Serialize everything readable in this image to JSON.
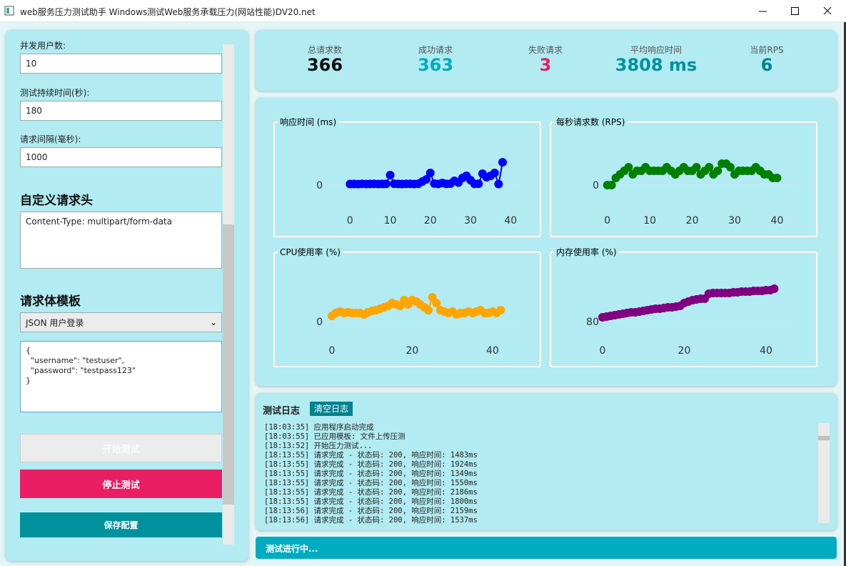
{
  "window": {
    "title": "web服务压力测试助手 Windows测试Web服务承载压力(网站性能)DV20.net"
  },
  "form": {
    "fields": [
      {
        "label": "并发用户数:",
        "value": "10"
      },
      {
        "label": "测试持续时间(秒):",
        "value": "180"
      },
      {
        "label": "请求间隔(毫秒):",
        "value": "1000"
      }
    ],
    "headers_title": "自定义请求头",
    "headers_value": "Content-Type: multipart/form-data",
    "body_title": "请求体模板",
    "template": "JSON 用户登录",
    "body_value": "{\n  \"username\": \"testuser\",\n  \"password\": \"testpass123\"\n}",
    "buttons": [
      "开始测试",
      "停止测试",
      "保存配置"
    ]
  },
  "stats": [
    {
      "label": "总请求数",
      "value": "366"
    },
    {
      "label": "成功请求",
      "value": "363"
    },
    {
      "label": "失败请求",
      "value": "3"
    },
    {
      "label": "平均响应时间",
      "value": "3808 ms"
    },
    {
      "label": "当前RPS",
      "value": "6"
    }
  ],
  "chart_data": [
    {
      "type": "line",
      "title": "响应时间 (ms)",
      "color": "#0000ff",
      "xlim": [
        -10,
        46
      ],
      "ylim": [
        -32000,
        73000
      ],
      "xticks": [
        0,
        10,
        20,
        30,
        40
      ],
      "yticks": [
        0
      ],
      "x": [
        0,
        1,
        2,
        3,
        4,
        5,
        6,
        7,
        8,
        9,
        10,
        11,
        12,
        13,
        14,
        15,
        16,
        17,
        18,
        19,
        20,
        21,
        22,
        23,
        24,
        25,
        26,
        27,
        28,
        29,
        30,
        31,
        32,
        33,
        34,
        35,
        36,
        37,
        38
      ],
      "values": [
        1500,
        1600,
        1400,
        1700,
        1500,
        1600,
        1800,
        1500,
        1600,
        1700,
        14000,
        1900,
        1600,
        1500,
        1800,
        1700,
        1500,
        1900,
        5000,
        8000,
        17000,
        2100,
        1600,
        3000,
        1800,
        2000,
        6000,
        3500,
        10000,
        13000,
        7000,
        1700,
        1900,
        16000,
        11000,
        13000,
        17000,
        1500,
        32000
      ]
    },
    {
      "type": "line",
      "title": "每秒请求数 (RPS)",
      "color": "#008000",
      "xlim": [
        -5,
        48
      ],
      "ylim": [
        -6.4,
        14.6
      ],
      "xticks": [
        0,
        10,
        20,
        30,
        40
      ],
      "yticks": [
        0
      ],
      "x": [
        0,
        1,
        2,
        3,
        4,
        5,
        6,
        7,
        8,
        9,
        10,
        11,
        12,
        13,
        14,
        15,
        16,
        17,
        18,
        19,
        20,
        21,
        22,
        23,
        24,
        25,
        26,
        27,
        28,
        29,
        30,
        31,
        32,
        33,
        34,
        35,
        36,
        37,
        38,
        39,
        40
      ],
      "values": [
        0,
        0,
        2,
        3,
        4,
        5,
        3,
        4,
        4,
        5,
        4,
        4,
        4,
        4,
        5,
        4,
        3,
        4,
        5,
        4,
        4,
        5,
        3,
        4,
        5,
        3,
        4,
        6,
        6,
        5,
        3,
        4,
        4,
        4,
        4,
        5,
        4,
        3,
        3,
        2,
        2
      ]
    },
    {
      "type": "line",
      "title": "CPU使用率 (%)",
      "color": "#ffa500",
      "xlim": [
        -5.5,
        50.5
      ],
      "ylim": [
        -23,
        82
      ],
      "xticks": [
        0,
        20,
        40
      ],
      "yticks": [
        0
      ],
      "x": [
        0,
        1,
        2,
        3,
        4,
        5,
        6,
        7,
        8,
        9,
        10,
        11,
        12,
        13,
        14,
        15,
        16,
        17,
        18,
        19,
        20,
        21,
        22,
        23,
        24,
        25,
        26,
        27,
        28,
        29,
        30,
        31,
        32,
        33,
        34,
        35,
        36,
        37,
        38,
        39,
        40,
        41,
        42
      ],
      "values": [
        8,
        12,
        14,
        12,
        13,
        12,
        12,
        12,
        10,
        13,
        15,
        16,
        18,
        20,
        22,
        26,
        24,
        22,
        30,
        24,
        30,
        28,
        24,
        20,
        16,
        34,
        26,
        16,
        14,
        12,
        14,
        10,
        12,
        12,
        14,
        12,
        14,
        16,
        12,
        12,
        14,
        12,
        16
      ]
    },
    {
      "type": "line",
      "title": "内存使用率 (%)",
      "color": "#800080",
      "xlim": [
        -4,
        51
      ],
      "ylim": [
        77.7,
        88.2
      ],
      "xticks": [
        0,
        20,
        40
      ],
      "yticks": [
        80
      ],
      "x": [
        0,
        1,
        2,
        3,
        4,
        5,
        6,
        7,
        8,
        9,
        10,
        11,
        12,
        13,
        14,
        15,
        16,
        17,
        18,
        19,
        20,
        21,
        22,
        23,
        24,
        25,
        26,
        27,
        28,
        29,
        30,
        31,
        32,
        33,
        34,
        35,
        36,
        37,
        38,
        39,
        40,
        41,
        42
      ],
      "values": [
        80.6,
        80.7,
        80.8,
        80.9,
        81.0,
        81.1,
        81.2,
        81.3,
        81.3,
        81.4,
        81.5,
        81.6,
        81.7,
        81.8,
        81.8,
        81.9,
        82.0,
        82.0,
        82.1,
        82.2,
        82.6,
        82.8,
        83.0,
        83.1,
        83.2,
        83.2,
        83.9,
        84.0,
        84.0,
        84.0,
        84.0,
        84.0,
        84.1,
        84.1,
        84.2,
        84.2,
        84.2,
        84.3,
        84.3,
        84.3,
        84.4,
        84.4,
        84.6
      ]
    }
  ],
  "log": {
    "title": "测试日志",
    "clear": "清空日志",
    "lines": [
      "[18:03:35] 应用程序启动完成",
      "[18:03:55] 已应用模板: 文件上传压测",
      "[18:13:52] 开始压力测试...",
      "[18:13:55] 请求完成 - 状态码: 200, 响应时间: 1483ms",
      "[18:13:55] 请求完成 - 状态码: 200, 响应时间: 1924ms",
      "[18:13:55] 请求完成 - 状态码: 200, 响应时间: 1349ms",
      "[18:13:55] 请求完成 - 状态码: 200, 响应时间: 1550ms",
      "[18:13:55] 请求完成 - 状态码: 200, 响应时间: 2186ms",
      "[18:13:55] 请求完成 - 状态码: 200, 响应时间: 1800ms",
      "[18:13:56] 请求完成 - 状态码: 200, 响应时间: 2159ms",
      "[18:13:56] 请求完成 - 状态码: 200, 响应时间: 1537ms"
    ]
  },
  "status": "测试进行中..."
}
